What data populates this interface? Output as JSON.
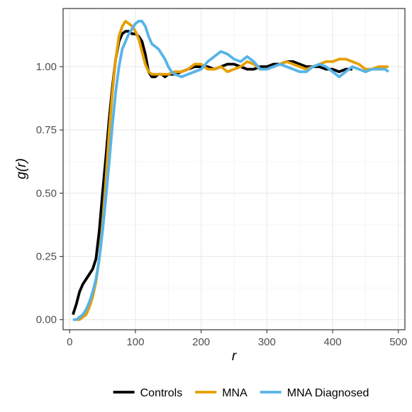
{
  "chart_data": {
    "type": "line",
    "xlabel": "r",
    "ylabel": "g(r)",
    "xlim": [
      -10,
      510
    ],
    "ylim": [
      -0.04,
      1.23
    ],
    "x_ticks": [
      0,
      100,
      200,
      300,
      400,
      500
    ],
    "x_tick_labels": [
      "0",
      "100",
      "200",
      "300",
      "400",
      "500"
    ],
    "y_ticks": [
      0,
      0.25,
      0.5,
      0.75,
      1.0
    ],
    "y_tick_labels": [
      "0.00",
      "0.25",
      "0.50",
      "0.75",
      "1.00"
    ],
    "grid": true,
    "legend_position": "bottom",
    "series": [
      {
        "name": "Controls",
        "color": "#000000",
        "x": [
          5,
          10,
          15,
          20,
          25,
          30,
          35,
          40,
          45,
          50,
          55,
          60,
          65,
          70,
          75,
          80,
          85,
          90,
          95,
          100,
          105,
          110,
          115,
          120,
          125,
          130,
          135,
          140,
          145,
          150,
          160,
          170,
          180,
          190,
          200,
          210,
          220,
          230,
          240,
          250,
          260,
          270,
          280,
          290,
          300,
          310,
          320,
          330,
          340,
          350,
          360,
          370,
          380,
          390,
          400,
          410,
          420,
          430
        ],
        "values": [
          0.02,
          0.06,
          0.11,
          0.14,
          0.16,
          0.18,
          0.2,
          0.24,
          0.35,
          0.5,
          0.64,
          0.79,
          0.92,
          1.03,
          1.1,
          1.13,
          1.14,
          1.14,
          1.13,
          1.13,
          1.12,
          1.1,
          1.05,
          0.98,
          0.96,
          0.96,
          0.97,
          0.97,
          0.96,
          0.97,
          0.97,
          0.98,
          0.99,
          1.0,
          1.0,
          1.0,
          0.99,
          1.0,
          1.01,
          1.01,
          1.0,
          0.99,
          0.99,
          1.0,
          1.0,
          1.01,
          1.01,
          1.02,
          1.02,
          1.01,
          1.0,
          1.0,
          1.0,
          0.99,
          0.99,
          0.98,
          0.99,
          0.99
        ]
      },
      {
        "name": "MNA",
        "color": "#E69F00",
        "x": [
          10,
          15,
          20,
          25,
          30,
          35,
          40,
          45,
          50,
          55,
          60,
          65,
          70,
          75,
          80,
          85,
          90,
          95,
          100,
          105,
          110,
          115,
          120,
          125,
          130,
          140,
          150,
          160,
          170,
          180,
          190,
          200,
          210,
          220,
          230,
          240,
          250,
          260,
          270,
          280,
          290,
          300,
          310,
          320,
          330,
          340,
          350,
          360,
          370,
          380,
          390,
          400,
          410,
          420,
          430,
          440,
          450,
          460,
          470,
          480,
          485
        ],
        "values": [
          0.0,
          0.0,
          0.01,
          0.02,
          0.05,
          0.09,
          0.15,
          0.24,
          0.38,
          0.55,
          0.74,
          0.9,
          1.03,
          1.12,
          1.16,
          1.18,
          1.17,
          1.16,
          1.14,
          1.11,
          1.06,
          1.01,
          0.98,
          0.97,
          0.97,
          0.97,
          0.97,
          0.98,
          0.98,
          0.99,
          1.01,
          1.01,
          0.99,
          0.99,
          1.0,
          0.98,
          0.99,
          1.0,
          1.02,
          1.01,
          0.99,
          0.99,
          1.0,
          1.01,
          1.02,
          1.01,
          1.0,
          0.99,
          1.0,
          1.01,
          1.02,
          1.02,
          1.03,
          1.03,
          1.02,
          1.01,
          0.99,
          0.99,
          1.0,
          1.0,
          1.0
        ]
      },
      {
        "name": "MNA Diagnosed",
        "color": "#56B4E9",
        "x": [
          5,
          10,
          15,
          20,
          25,
          30,
          35,
          40,
          45,
          50,
          55,
          60,
          65,
          70,
          75,
          80,
          85,
          90,
          95,
          100,
          105,
          110,
          115,
          120,
          125,
          130,
          135,
          140,
          145,
          150,
          155,
          160,
          170,
          180,
          190,
          200,
          210,
          220,
          230,
          240,
          250,
          260,
          270,
          280,
          290,
          300,
          310,
          320,
          330,
          340,
          350,
          360,
          370,
          380,
          390,
          400,
          410,
          420,
          430,
          440,
          450,
          460,
          470,
          480,
          485
        ],
        "values": [
          0.0,
          0.0,
          0.01,
          0.02,
          0.04,
          0.07,
          0.11,
          0.16,
          0.24,
          0.35,
          0.48,
          0.62,
          0.77,
          0.9,
          1.0,
          1.07,
          1.1,
          1.13,
          1.15,
          1.17,
          1.18,
          1.18,
          1.16,
          1.12,
          1.09,
          1.08,
          1.07,
          1.05,
          1.03,
          1.0,
          0.98,
          0.97,
          0.96,
          0.97,
          0.98,
          0.99,
          1.02,
          1.04,
          1.06,
          1.05,
          1.03,
          1.02,
          1.04,
          1.02,
          0.99,
          0.99,
          1.0,
          1.01,
          1.0,
          0.99,
          0.98,
          0.98,
          1.0,
          1.01,
          1.0,
          0.98,
          0.96,
          0.98,
          1.0,
          0.99,
          0.98,
          0.99,
          0.99,
          0.99,
          0.98
        ]
      }
    ]
  }
}
